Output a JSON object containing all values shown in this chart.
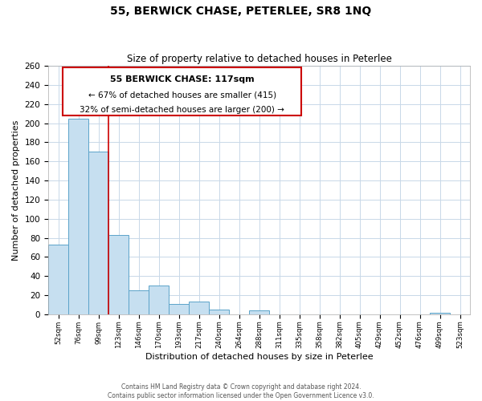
{
  "title": "55, BERWICK CHASE, PETERLEE, SR8 1NQ",
  "subtitle": "Size of property relative to detached houses in Peterlee",
  "xlabel": "Distribution of detached houses by size in Peterlee",
  "ylabel": "Number of detached properties",
  "bar_labels": [
    "52sqm",
    "76sqm",
    "99sqm",
    "123sqm",
    "146sqm",
    "170sqm",
    "193sqm",
    "217sqm",
    "240sqm",
    "264sqm",
    "288sqm",
    "311sqm",
    "335sqm",
    "358sqm",
    "382sqm",
    "405sqm",
    "429sqm",
    "452sqm",
    "476sqm",
    "499sqm",
    "523sqm"
  ],
  "bar_values": [
    73,
    205,
    170,
    83,
    25,
    30,
    11,
    13,
    5,
    0,
    4,
    0,
    0,
    0,
    0,
    0,
    0,
    0,
    0,
    2,
    0
  ],
  "bar_color": "#c6dff0",
  "bar_edge_color": "#5ba3c9",
  "property_line_color": "#cc0000",
  "ylim": [
    0,
    260
  ],
  "yticks": [
    0,
    20,
    40,
    60,
    80,
    100,
    120,
    140,
    160,
    180,
    200,
    220,
    240,
    260
  ],
  "annotation_title": "55 BERWICK CHASE: 117sqm",
  "annotation_line1": "← 67% of detached houses are smaller (415)",
  "annotation_line2": "32% of semi-detached houses are larger (200) →",
  "footer_line1": "Contains HM Land Registry data © Crown copyright and database right 2024.",
  "footer_line2": "Contains public sector information licensed under the Open Government Licence v3.0.",
  "background_color": "#ffffff",
  "grid_color": "#c8d8e8"
}
